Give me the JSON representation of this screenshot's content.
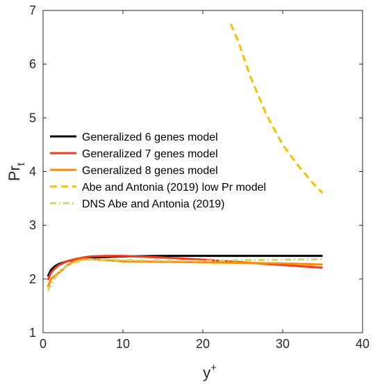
{
  "chart_data": {
    "type": "line",
    "xlabel": {
      "base": "y",
      "sup": "+"
    },
    "ylabel": {
      "base": "Pr",
      "sub": "t"
    },
    "xlim": [
      0,
      40
    ],
    "ylim": [
      1,
      7
    ],
    "xticks": [
      0,
      10,
      20,
      30,
      40
    ],
    "yticks": [
      1,
      2,
      3,
      4,
      5,
      6,
      7
    ],
    "grid": false,
    "legend_position": "center-left",
    "series": [
      {
        "name": "Generalized 6 genes model",
        "color": "#000000",
        "style": "solid",
        "x": [
          0.6,
          1,
          1.5,
          2,
          3,
          4,
          5,
          6,
          8,
          10,
          15,
          20,
          25,
          30,
          35
        ],
        "y": [
          2.05,
          2.17,
          2.24,
          2.28,
          2.33,
          2.36,
          2.38,
          2.4,
          2.41,
          2.42,
          2.43,
          2.43,
          2.43,
          2.43,
          2.43
        ]
      },
      {
        "name": "Generalized 7 genes model",
        "color": "#f03c1e",
        "style": "solid",
        "x": [
          0.6,
          1,
          1.5,
          2,
          3,
          4,
          5,
          6,
          8,
          10,
          15,
          20,
          25,
          30,
          35
        ],
        "y": [
          1.98,
          2.12,
          2.2,
          2.26,
          2.33,
          2.37,
          2.4,
          2.42,
          2.43,
          2.43,
          2.4,
          2.36,
          2.31,
          2.26,
          2.21
        ]
      },
      {
        "name": "Generalized 8 genes model",
        "color": "#ff8c00",
        "style": "solid",
        "x": [
          0.6,
          1,
          1.5,
          2,
          3,
          4,
          5,
          6,
          8,
          10,
          15,
          20,
          25,
          30,
          35
        ],
        "y": [
          1.85,
          2.0,
          2.06,
          2.12,
          2.25,
          2.34,
          2.37,
          2.37,
          2.35,
          2.33,
          2.32,
          2.31,
          2.3,
          2.29,
          2.27
        ]
      },
      {
        "name": "Abe and Antonia (2019) low Pr model",
        "color": "#f2c200",
        "style": "dashed",
        "x": [
          23.5,
          24.5,
          26,
          28,
          30,
          32,
          34,
          35
        ],
        "y": [
          6.75,
          6.4,
          5.75,
          5.05,
          4.5,
          4.1,
          3.75,
          3.6
        ]
      },
      {
        "name": "DNS Abe and Antonia (2019)",
        "color": "#d2d46e",
        "style": "dashdot",
        "x": [
          0.6,
          1,
          1.5,
          2,
          3,
          4,
          5,
          6,
          8,
          10,
          15,
          20,
          25,
          30,
          35
        ],
        "y": [
          1.78,
          1.9,
          2.02,
          2.12,
          2.24,
          2.31,
          2.35,
          2.36,
          2.36,
          2.35,
          2.34,
          2.34,
          2.35,
          2.36,
          2.37
        ]
      }
    ]
  }
}
